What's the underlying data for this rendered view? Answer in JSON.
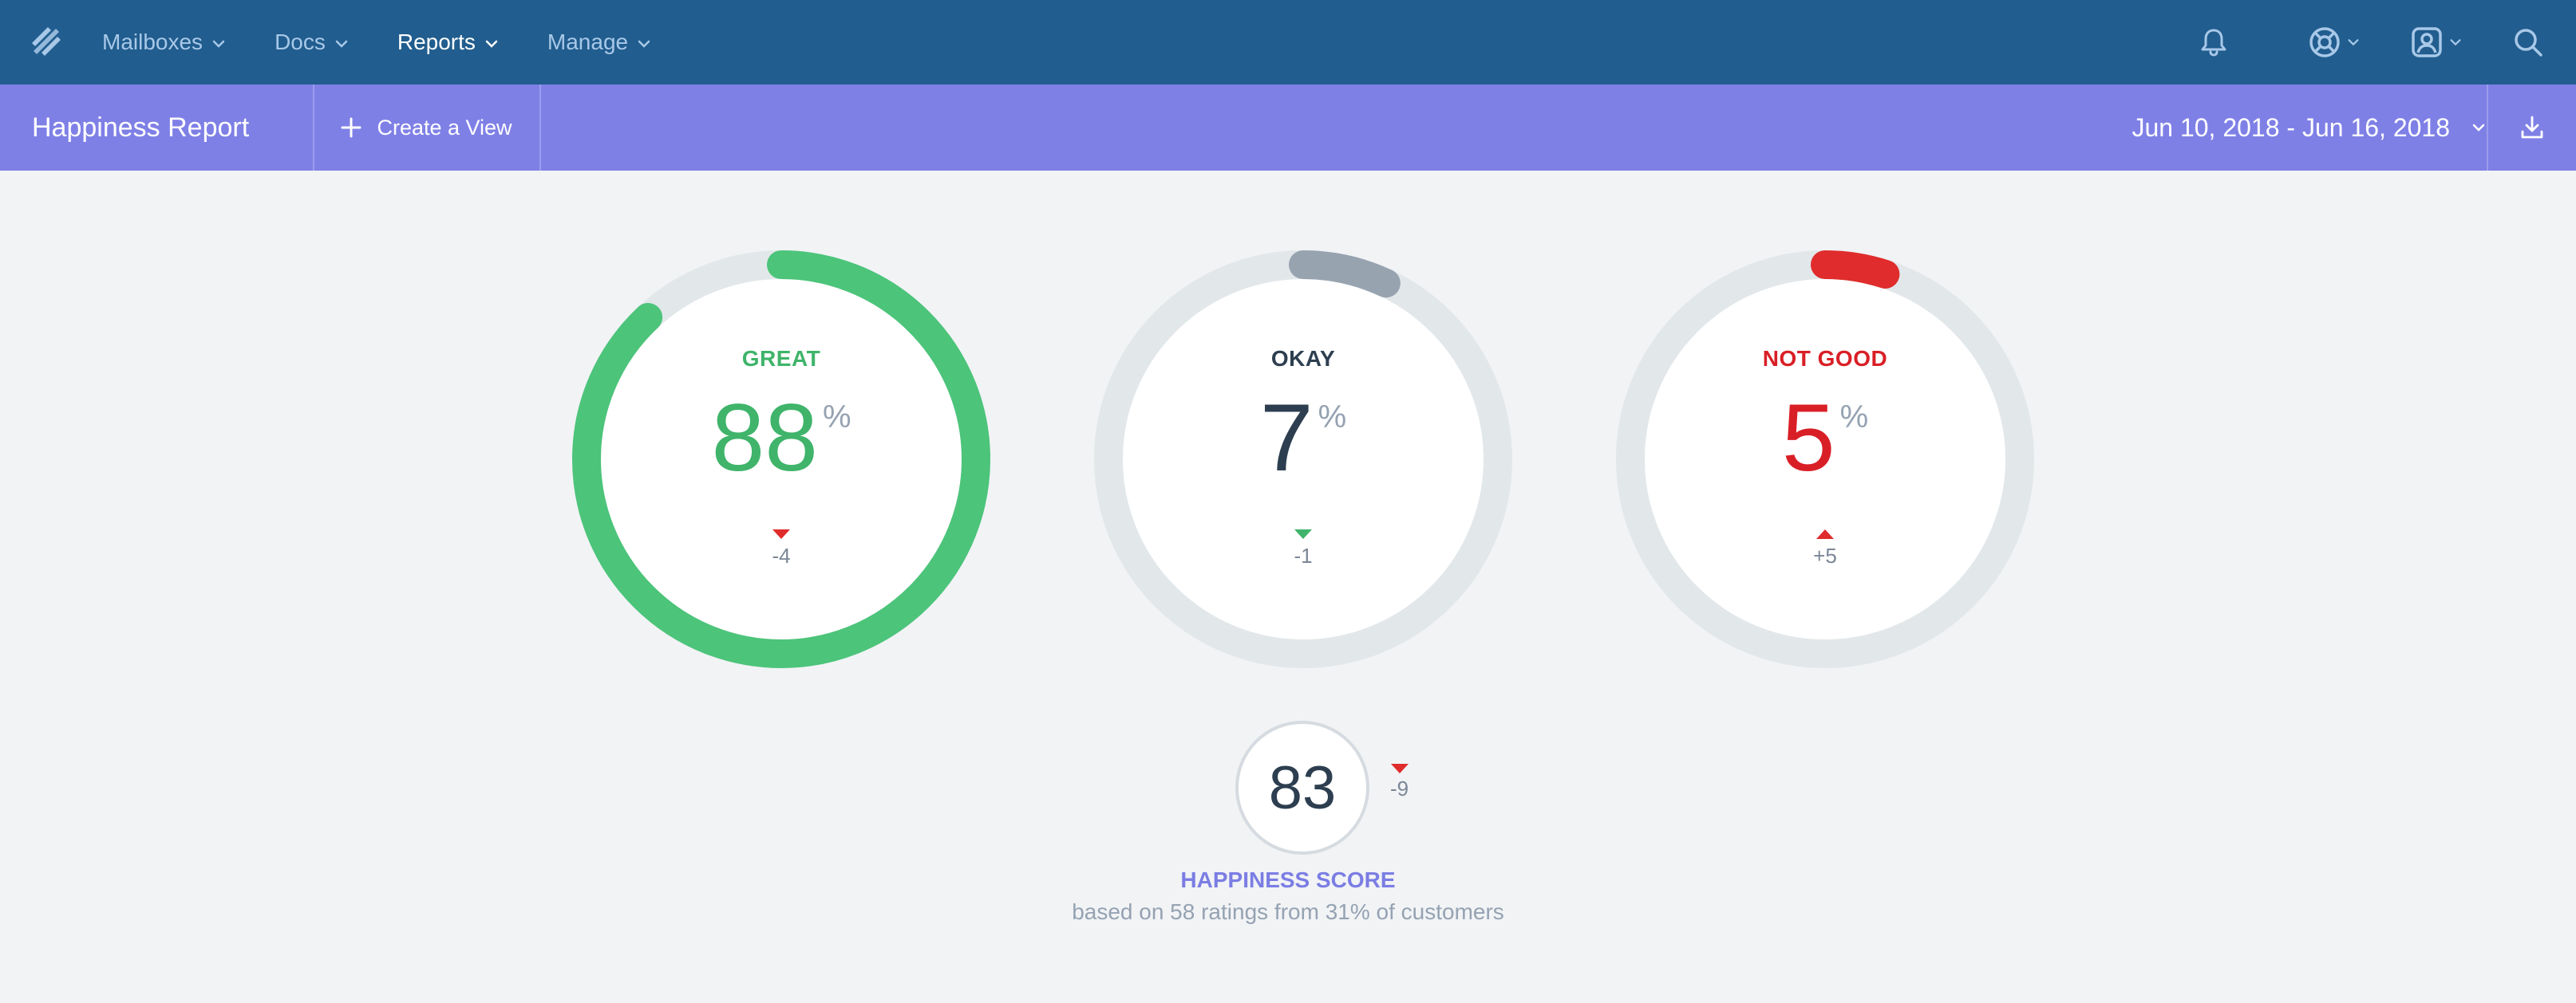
{
  "nav": {
    "items": [
      {
        "label": "Mailboxes",
        "active": false
      },
      {
        "label": "Docs",
        "active": false
      },
      {
        "label": "Reports",
        "active": true
      },
      {
        "label": "Manage",
        "active": false
      }
    ],
    "icons": [
      "bell-icon",
      "help-lifebuoy-icon",
      "user-account-icon",
      "search-icon"
    ]
  },
  "subheader": {
    "title": "Happiness Report",
    "create_view_label": "Create a View",
    "date_range": "Jun 10, 2018 - Jun 16, 2018"
  },
  "ratings": [
    {
      "label": "GREAT",
      "value": "88",
      "unit": "%",
      "percent": 88,
      "delta": "-4",
      "direction": "down",
      "label_color": "#3fb46a",
      "value_color": "#3fb46a",
      "arc_color": "#4cc47a",
      "triangle_color": "#e02c2c"
    },
    {
      "label": "OKAY",
      "value": "7",
      "unit": "%",
      "percent": 7,
      "delta": "-1",
      "direction": "down",
      "label_color": "#2d3e50",
      "value_color": "#2d3e50",
      "arc_color": "#98a3b0",
      "triangle_color": "#3fb46a"
    },
    {
      "label": "NOT GOOD",
      "value": "5",
      "unit": "%",
      "percent": 5,
      "delta": "+5",
      "direction": "up",
      "label_color": "#d91f26",
      "value_color": "#d91f26",
      "arc_color": "#e02c2c",
      "triangle_color": "#e02c2c"
    }
  ],
  "score": {
    "value": "83",
    "delta": "-9",
    "direction": "down",
    "triangle_color": "#e02c2c",
    "label": "HAPPINESS SCORE",
    "subtitle": "based on 58 ratings from 31% of customers"
  },
  "colors": {
    "topnav": "#215d8e",
    "subheader": "#7f80e6",
    "ring_track": "#e2e7ea"
  }
}
